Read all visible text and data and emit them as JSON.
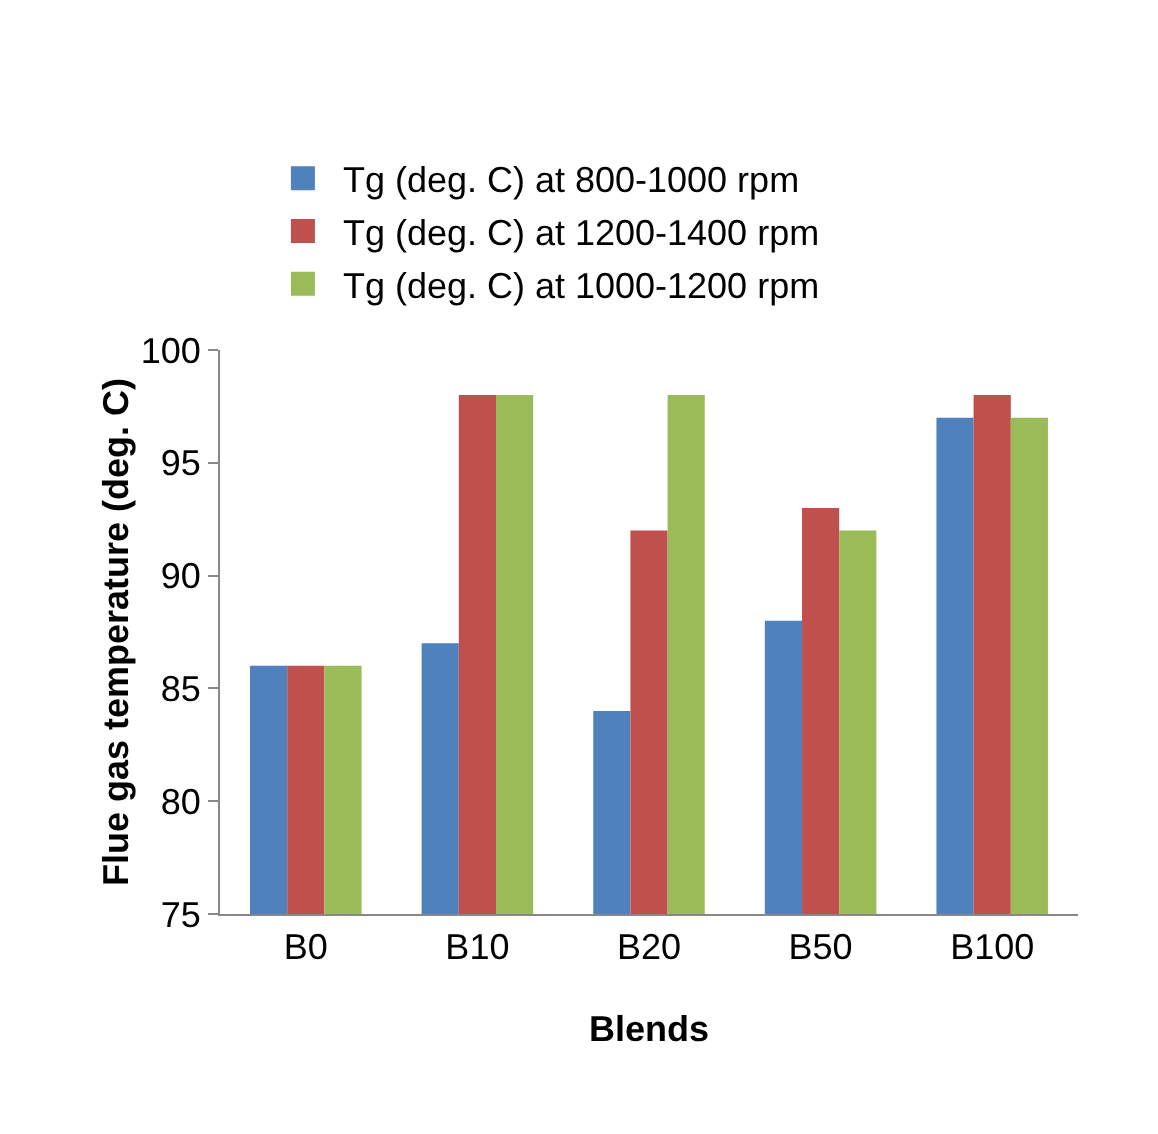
{
  "chart_data": {
    "type": "bar",
    "xlabel": "Blends",
    "ylabel": "Flue gas temperature (deg. C)",
    "categories": [
      "B0",
      "B10",
      "B20",
      "B50",
      "B100"
    ],
    "series": [
      {
        "name": "Tg (deg. C) at 800-1000 rpm",
        "color": "#4f81bd",
        "values": [
          86,
          87,
          84,
          88,
          97
        ]
      },
      {
        "name": "Tg (deg. C) at 1200-1400 rpm",
        "color": "#c0504d",
        "values": [
          86,
          98,
          92,
          93,
          98
        ]
      },
      {
        "name": "Tg (deg. C) at 1000-1200 rpm",
        "color": "#9bbb59",
        "values": [
          86,
          98,
          98,
          92,
          97
        ]
      }
    ],
    "ylim": [
      75,
      100
    ],
    "yticks": [
      75,
      80,
      85,
      90,
      95,
      100
    ],
    "grid": false,
    "legend": "top"
  }
}
